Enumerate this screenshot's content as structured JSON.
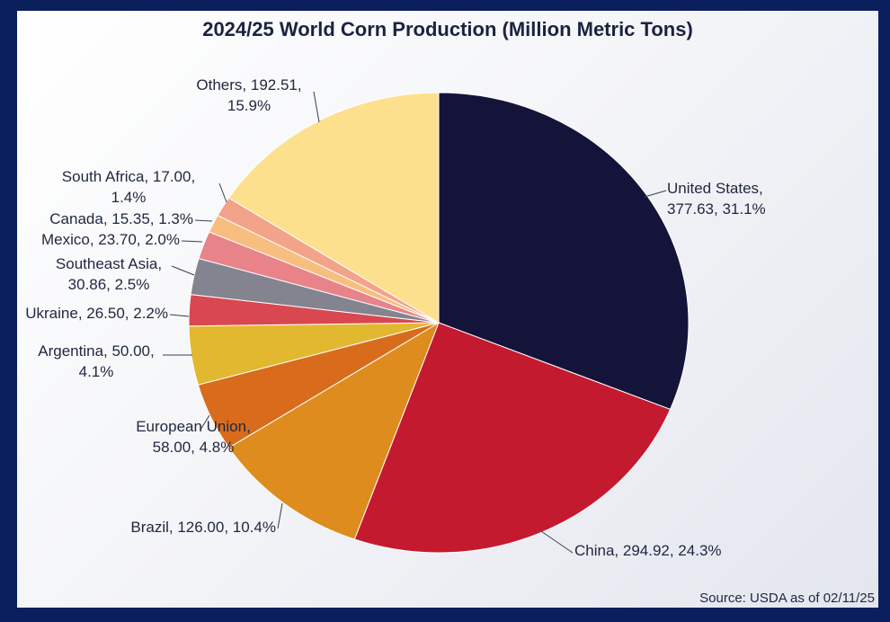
{
  "chart_data": {
    "type": "pie",
    "title": "2024/25 World Corn Production (Million Metric Tons)",
    "source": "Source: USDA as of 02/11/25",
    "start": "12 o'clock",
    "direction": "clockwise",
    "slices": [
      {
        "name": "United States",
        "value": 377.63,
        "percent": 31.1,
        "color": "#14143a",
        "label_lines": [
          "United States,",
          "377.63, 31.1%"
        ]
      },
      {
        "name": "China",
        "value": 294.92,
        "percent": 24.3,
        "color": "#c41a30",
        "label_lines": [
          "China, 294.92, 24.3%"
        ]
      },
      {
        "name": "Brazil",
        "value": 126.0,
        "percent": 10.4,
        "color": "#de8c1e",
        "label_lines": [
          "Brazil, 126.00, 10.4%"
        ]
      },
      {
        "name": "European Union",
        "value": 58.0,
        "percent": 4.8,
        "color": "#d86c1c",
        "label_lines": [
          "European Union,",
          "58.00, 4.8%"
        ]
      },
      {
        "name": "Argentina",
        "value": 50.0,
        "percent": 4.1,
        "color": "#e2b831",
        "label_lines": [
          "Argentina, 50.00,",
          "4.1%"
        ]
      },
      {
        "name": "Ukraine",
        "value": 26.5,
        "percent": 2.2,
        "color": "#d94850",
        "label_lines": [
          "Ukraine, 26.50, 2.2%"
        ]
      },
      {
        "name": "Southeast Asia",
        "value": 30.86,
        "percent": 2.5,
        "color": "#83848f",
        "label_lines": [
          "Southeast Asia,",
          "30.86, 2.5%"
        ]
      },
      {
        "name": "Mexico",
        "value": 23.7,
        "percent": 2.0,
        "color": "#e8838a",
        "label_lines": [
          "Mexico, 23.70, 2.0%"
        ]
      },
      {
        "name": "Canada",
        "value": 15.35,
        "percent": 1.3,
        "color": "#f8be7f",
        "label_lines": [
          "Canada, 15.35, 1.3%"
        ]
      },
      {
        "name": "South Africa",
        "value": 17.0,
        "percent": 1.4,
        "color": "#f3a38a",
        "label_lines": [
          "South Africa, 17.00,",
          "1.4%"
        ]
      },
      {
        "name": "Others",
        "value": 192.51,
        "percent": 15.9,
        "color": "#fde08e",
        "label_lines": [
          "Others, 192.51,",
          "15.9%"
        ]
      }
    ]
  }
}
